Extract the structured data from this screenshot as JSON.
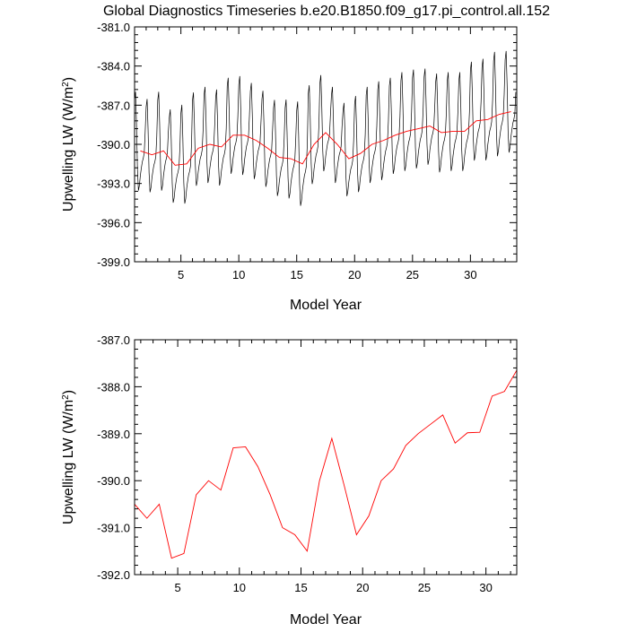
{
  "title": "Global Diagnostics Timeseries b.e20.B1850.f09_g17.pi_control.all.152",
  "monthly_color": "#000000",
  "annual_color": "#ff0000",
  "chart_data": [
    {
      "type": "line",
      "xlabel": "Model Year",
      "ylabel_main": "Upwelling LW (W/m",
      "ylabel_sup": "2",
      "ylabel_tail": ")",
      "xlim": [
        1,
        34
      ],
      "ylim": [
        -399,
        -381
      ],
      "xticks": [
        5,
        10,
        15,
        20,
        25,
        30
      ],
      "xtick_labels": [
        "5",
        "10",
        "15",
        "20",
        "25",
        "30"
      ],
      "yticks": [
        -399,
        -396,
        -393,
        -390,
        -387,
        -384,
        -381
      ],
      "ytick_labels": [
        "-399.0",
        "-396.0",
        "-393.0",
        "-390.0",
        "-387.0",
        "-384.0",
        "-381.0"
      ],
      "series": [
        {
          "kind": "monthly",
          "x_start": 1,
          "x_step": 0.08333,
          "annual_mean": [
            -390.5,
            -390.8,
            -390.5,
            -391.6,
            -391.5,
            -390.3,
            -390.0,
            -390.2,
            -389.3,
            -389.3,
            -389.7,
            -390.3,
            -391.0,
            -391.1,
            -391.5,
            -390.0,
            -389.1,
            -390.0,
            -391.1,
            -390.7,
            -390.0,
            -389.7,
            -389.3,
            -389.0,
            -388.8,
            -388.6,
            -389.1,
            -389.0,
            -389.0,
            -388.2,
            -388.1,
            -387.7,
            -387.5
          ],
          "amplitude": [
            3.6,
            3.4,
            3.6,
            3.4,
            3.6,
            3.4,
            3.5,
            3.5,
            3.5,
            3.6,
            3.5,
            3.5,
            3.5,
            3.6,
            3.8,
            3.6,
            3.5,
            3.5,
            3.4,
            3.5,
            3.5,
            3.6,
            3.5,
            3.6,
            3.6,
            3.5,
            3.6,
            3.6,
            3.6,
            3.6,
            3.7,
            3.8,
            3.7
          ]
        },
        {
          "kind": "annual",
          "x": [
            1.5,
            2.5,
            3.5,
            4.5,
            5.5,
            6.5,
            7.5,
            8.5,
            9.5,
            10.5,
            11.5,
            12.5,
            13.5,
            14.5,
            15.5,
            16.5,
            17.5,
            18.5,
            19.5,
            20.5,
            21.5,
            22.5,
            23.5,
            24.5,
            25.5,
            26.5,
            27.5,
            28.5,
            29.5,
            30.5,
            31.5,
            32.5,
            33.5
          ],
          "values": [
            -390.5,
            -390.8,
            -390.5,
            -391.6,
            -391.5,
            -390.3,
            -390.0,
            -390.2,
            -389.3,
            -389.3,
            -389.7,
            -390.3,
            -391.0,
            -391.1,
            -391.5,
            -390.0,
            -389.1,
            -390.0,
            -391.1,
            -390.7,
            -390.0,
            -389.7,
            -389.3,
            -389.0,
            -388.8,
            -388.6,
            -389.1,
            -389.0,
            -389.0,
            -388.2,
            -388.1,
            -387.7,
            -387.5
          ]
        }
      ]
    },
    {
      "type": "line",
      "xlabel": "Model Year",
      "ylabel_main": "Upwelling LW (W/m",
      "ylabel_sup": "2",
      "ylabel_tail": ")",
      "xlim": [
        1.5,
        32.5
      ],
      "ylim": [
        -392,
        -387
      ],
      "xticks": [
        5,
        10,
        15,
        20,
        25,
        30
      ],
      "xtick_labels": [
        "5",
        "10",
        "15",
        "20",
        "25",
        "30"
      ],
      "yticks": [
        -392,
        -391,
        -390,
        -389,
        -388,
        -387
      ],
      "ytick_labels": [
        "-392.0",
        "-391.0",
        "-390.0",
        "-389.0",
        "-388.0",
        "-387.0"
      ],
      "series": [
        {
          "kind": "annual",
          "x": [
            1.5,
            2.5,
            3.5,
            4.5,
            5.5,
            6.5,
            7.5,
            8.5,
            9.5,
            10.5,
            11.5,
            12.5,
            13.5,
            14.5,
            15.5,
            16.5,
            17.5,
            18.5,
            19.5,
            20.5,
            21.5,
            22.5,
            23.5,
            24.5,
            25.5,
            26.5,
            27.5,
            28.5,
            29.5,
            30.5,
            31.5,
            32.5
          ],
          "values": [
            -390.5,
            -390.8,
            -390.5,
            -391.65,
            -391.55,
            -390.3,
            -390.0,
            -390.2,
            -389.3,
            -389.28,
            -389.7,
            -390.3,
            -391.0,
            -391.15,
            -391.5,
            -390.0,
            -389.1,
            -390.1,
            -391.15,
            -390.75,
            -390.0,
            -389.75,
            -389.25,
            -389.0,
            -388.8,
            -388.6,
            -389.2,
            -388.98,
            -388.97,
            -388.2,
            -388.1,
            -387.65
          ]
        }
      ]
    }
  ]
}
